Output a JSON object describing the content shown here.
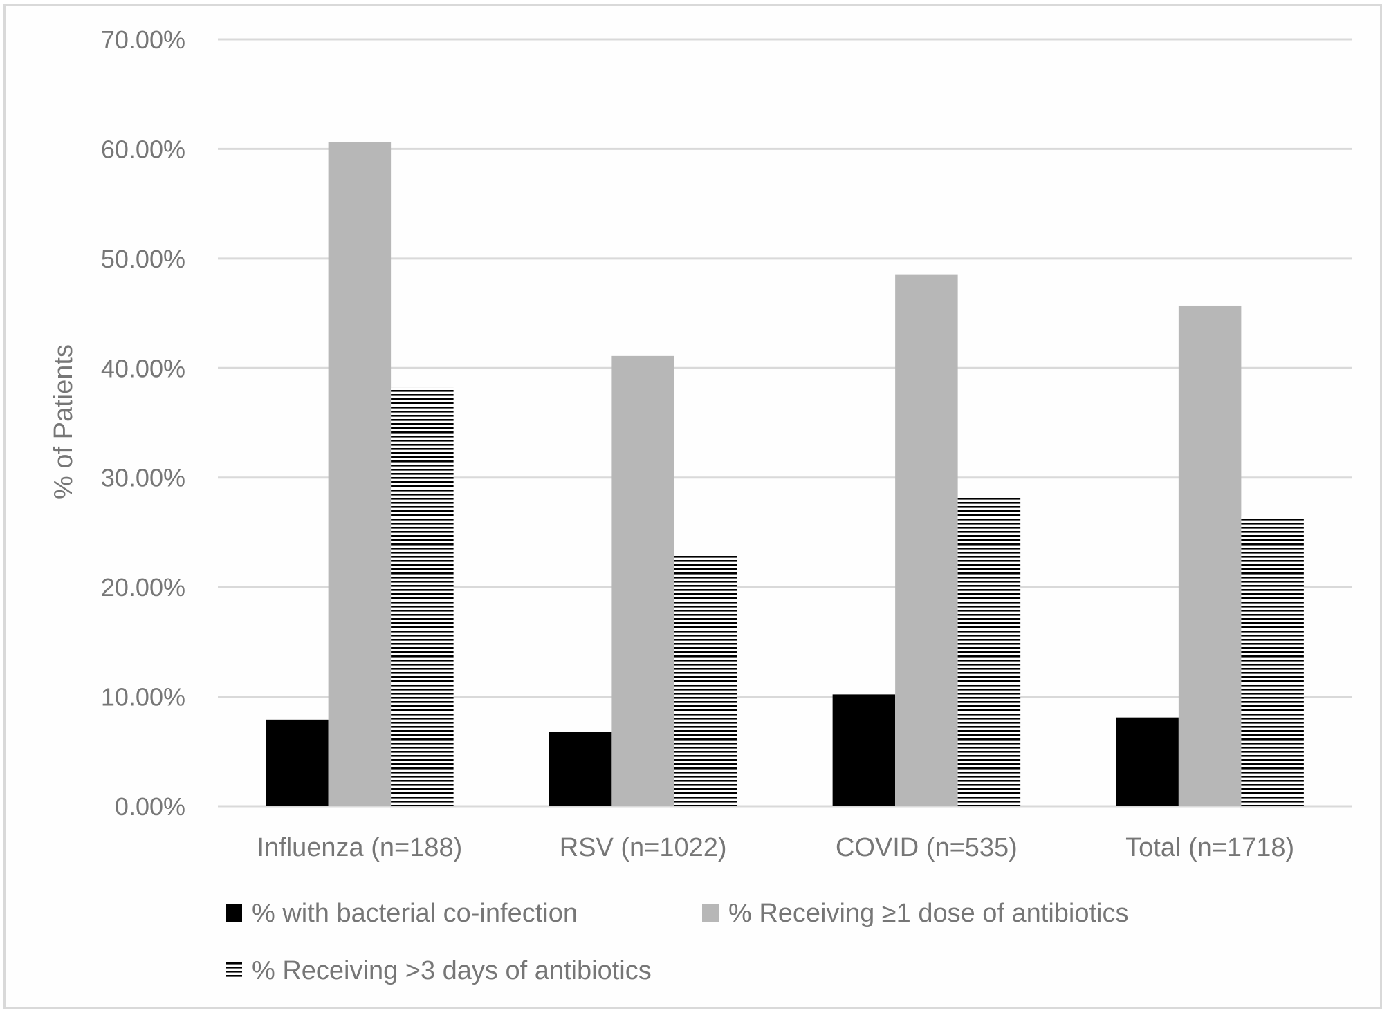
{
  "chart_data": {
    "type": "bar",
    "title": "",
    "xlabel": "",
    "ylabel": "% of Patients",
    "ylim": [
      0,
      70
    ],
    "ytick_step": 10,
    "ytick_labels": [
      "0.00%",
      "10.00%",
      "20.00%",
      "30.00%",
      "40.00%",
      "50.00%",
      "60.00%",
      "70.00%"
    ],
    "grid": true,
    "legend_position": "bottom",
    "categories": [
      "Influenza (n=188)",
      "RSV (n=1022)",
      "COVID (n=535)",
      "Total (n=1718)"
    ],
    "series": [
      {
        "name": "% with bacterial co-infection",
        "style": "solid",
        "color": "#000000",
        "values": [
          7.9,
          6.8,
          10.2,
          8.1
        ]
      },
      {
        "name": "% Receiving ≥1 dose of antibiotics",
        "style": "solid",
        "color": "#b7b7b7",
        "values": [
          60.6,
          41.1,
          48.5,
          45.7
        ]
      },
      {
        "name": "% Receiving >3 days of antibiotics",
        "style": "horizontal-stripes",
        "color": "#000000",
        "values": [
          38.2,
          22.9,
          28.2,
          26.5
        ]
      }
    ],
    "colors": {
      "gridline": "#d9d9d9",
      "text": "#767676",
      "border": "#d9d9d9"
    }
  }
}
